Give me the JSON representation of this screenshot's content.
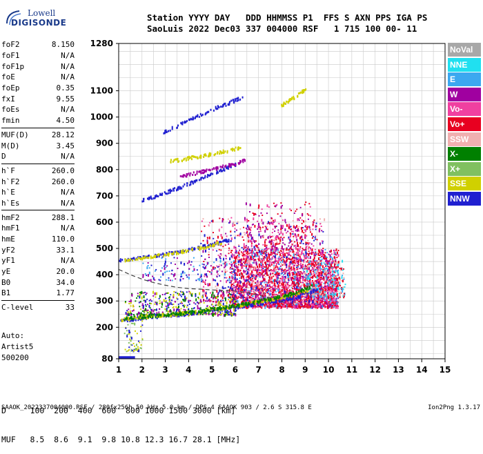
{
  "logo": {
    "line1": "Lowell",
    "line2": "DIGISONDE"
  },
  "header": {
    "line1": "Station YYYY DAY   DDD HHMMSS P1  FFS S AXN PPS IGA PS",
    "line2": "SaoLuis 2022 Dec03 337 004000 RSF   1 715 100 00- 11"
  },
  "params": {
    "group1": [
      {
        "label": "foF2",
        "value": "8.150"
      },
      {
        "label": "foF1",
        "value": "N/A"
      },
      {
        "label": "foF1p",
        "value": "N/A"
      },
      {
        "label": "foE",
        "value": "N/A"
      },
      {
        "label": "foEp",
        "value": "0.35"
      },
      {
        "label": "fxI",
        "value": "9.55"
      },
      {
        "label": "foEs",
        "value": "N/A"
      },
      {
        "label": "fmin",
        "value": "4.50"
      }
    ],
    "group2": [
      {
        "label": "MUF(D)",
        "value": "28.12"
      },
      {
        "label": "M(D)",
        "value": "3.45"
      },
      {
        "label": "D",
        "value": "N/A"
      }
    ],
    "group3": [
      {
        "label": "h`F",
        "value": "260.0"
      },
      {
        "label": "h`F2",
        "value": "260.0"
      },
      {
        "label": "h`E",
        "value": "N/A"
      },
      {
        "label": "h`Es",
        "value": "N/A"
      }
    ],
    "group4": [
      {
        "label": "hmF2",
        "value": "288.1"
      },
      {
        "label": "hmF1",
        "value": "N/A"
      },
      {
        "label": "hmE",
        "value": "110.0"
      },
      {
        "label": "yF2",
        "value": "33.1"
      },
      {
        "label": "yF1",
        "value": "N/A"
      },
      {
        "label": "yE",
        "value": "20.0"
      },
      {
        "label": "B0",
        "value": "34.0"
      },
      {
        "label": "B1",
        "value": "1.77"
      }
    ],
    "group5": [
      {
        "label": "C-level",
        "value": "33"
      }
    ]
  },
  "auto": {
    "line1": "Auto:",
    "line2": "Artist5",
    "line3": "500200"
  },
  "legend": [
    {
      "label": "NoVal",
      "color": "#a8a8a8"
    },
    {
      "label": "NNE",
      "color": "#20e0f0"
    },
    {
      "label": "E",
      "color": "#3ca8f0"
    },
    {
      "label": "W",
      "color": "#a000a0"
    },
    {
      "label": "Vo-",
      "color": "#f040a0"
    },
    {
      "label": "Vo+",
      "color": "#e80020"
    },
    {
      "label": "SSW",
      "color": "#f0b0b0"
    },
    {
      "label": "X-",
      "color": "#008000"
    },
    {
      "label": "X+",
      "color": "#80c060"
    },
    {
      "label": "SSE",
      "color": "#d0d000"
    },
    {
      "label": "NNW",
      "color": "#2020d0"
    }
  ],
  "bottom": {
    "line1": "D     100  200  400  600  800 1000 1500 3000 [km]",
    "line2": "MUF   8.5  8.6  9.1  9.8 10.8 12.3 16.7 28.1 [MHz]"
  },
  "footer": "SAAOK_2022337004000.RSF / 280fx256h 50 kHz 5.0 km / DPS-4 SAAOK 903 / 2.6 S 315.8 E",
  "version": "Ion2Png 1.3.17",
  "chart_data": {
    "type": "scatter",
    "xlim": [
      1,
      15
    ],
    "ylim": [
      80,
      1280
    ],
    "x_ticks": [
      1,
      2,
      3,
      4,
      5,
      6,
      7,
      8,
      9,
      10,
      11,
      12,
      13,
      14,
      15
    ],
    "y_ticks": [
      80,
      200,
      300,
      400,
      500,
      600,
      700,
      800,
      900,
      1000,
      1100,
      1280
    ],
    "grid": true,
    "profile_curve": [
      [
        1,
        420
      ],
      [
        1.5,
        400
      ],
      [
        2,
        383
      ],
      [
        2.5,
        370
      ],
      [
        3,
        360
      ],
      [
        3.5,
        352
      ],
      [
        4,
        347
      ],
      [
        4.5,
        345
      ],
      [
        5,
        342
      ],
      [
        5.5,
        340
      ],
      [
        6,
        338
      ],
      [
        6.5,
        332
      ],
      [
        7,
        322
      ],
      [
        7.5,
        312
      ],
      [
        8,
        298
      ],
      [
        8.2,
        288
      ]
    ],
    "traces": [
      {
        "points": [
          [
            1.0,
            228
          ],
          [
            1.5,
            234
          ],
          [
            2,
            240
          ],
          [
            2.5,
            244
          ],
          [
            3,
            247
          ],
          [
            3.5,
            251
          ],
          [
            4,
            255
          ],
          [
            4.5,
            262
          ],
          [
            5,
            268
          ],
          [
            5.5,
            274
          ],
          [
            6,
            280
          ],
          [
            6.5,
            287
          ],
          [
            7,
            293
          ],
          [
            7.5,
            300
          ],
          [
            8,
            307
          ],
          [
            8.5,
            316
          ],
          [
            9,
            330
          ],
          [
            9.5,
            348
          ]
        ],
        "color": "#2020d0"
      },
      {
        "points": [
          [
            1.1,
            232
          ],
          [
            1.6,
            238
          ],
          [
            2.1,
            243
          ],
          [
            2.6,
            247
          ],
          [
            3.1,
            250
          ],
          [
            3.6,
            254
          ],
          [
            4.1,
            259
          ],
          [
            4.6,
            266
          ],
          [
            5.1,
            272
          ],
          [
            5.6,
            279
          ],
          [
            6.1,
            286
          ],
          [
            6.6,
            294
          ],
          [
            7.1,
            302
          ],
          [
            7.6,
            310
          ],
          [
            8.1,
            320
          ],
          [
            8.6,
            332
          ],
          [
            9.1,
            346
          ]
        ],
        "color": "#d0d000"
      },
      {
        "points": [
          [
            1.2,
            236
          ],
          [
            1.8,
            242
          ],
          [
            2.3,
            246
          ],
          [
            2.8,
            249
          ],
          [
            3.3,
            252
          ],
          [
            3.8,
            257
          ],
          [
            4.3,
            262
          ],
          [
            4.8,
            269
          ],
          [
            5.3,
            276
          ],
          [
            5.8,
            283
          ],
          [
            6.3,
            291
          ],
          [
            6.8,
            299
          ],
          [
            7.3,
            308
          ],
          [
            7.8,
            318
          ],
          [
            8.3,
            329
          ],
          [
            8.8,
            342
          ],
          [
            9.3,
            360
          ]
        ],
        "color": "#008000"
      },
      {
        "points": [
          [
            1.0,
            458
          ],
          [
            1.5,
            462
          ],
          [
            2,
            468
          ],
          [
            2.5,
            475
          ],
          [
            3,
            482
          ],
          [
            3.5,
            490
          ],
          [
            4,
            498
          ],
          [
            4.5,
            508
          ],
          [
            5,
            518
          ],
          [
            5.5,
            530
          ],
          [
            6,
            542
          ]
        ],
        "color": "#2020d0"
      },
      {
        "points": [
          [
            1.2,
            456
          ],
          [
            1.8,
            464
          ],
          [
            2.4,
            472
          ],
          [
            3,
            480
          ],
          [
            3.6,
            490
          ],
          [
            4.2,
            500
          ],
          [
            4.8,
            512
          ],
          [
            5.4,
            526
          ]
        ],
        "color": "#d0d000"
      },
      {
        "points": [
          [
            1.9,
            682
          ],
          [
            2.5,
            700
          ],
          [
            3,
            716
          ],
          [
            3.5,
            732
          ],
          [
            4,
            750
          ],
          [
            4.5,
            768
          ],
          [
            5,
            786
          ],
          [
            5.5,
            805
          ],
          [
            6,
            822
          ]
        ],
        "color": "#2020d0"
      },
      {
        "points": [
          [
            3.2,
            835
          ],
          [
            3.7,
            842
          ],
          [
            4.2,
            850
          ],
          [
            4.7,
            858
          ],
          [
            5.2,
            866
          ],
          [
            5.7,
            876
          ],
          [
            6.2,
            886
          ]
        ],
        "color": "#d0d000"
      },
      {
        "points": [
          [
            3.6,
            778
          ],
          [
            4.1,
            786
          ],
          [
            4.6,
            796
          ],
          [
            5.1,
            806
          ],
          [
            5.6,
            818
          ],
          [
            6.1,
            830
          ],
          [
            6.4,
            840
          ]
        ],
        "color": "#a000a0"
      },
      {
        "points": [
          [
            2.9,
            945
          ],
          [
            3.5,
            970
          ],
          [
            4.1,
            995
          ],
          [
            4.7,
            1020
          ],
          [
            5.3,
            1043
          ],
          [
            5.8,
            1060
          ],
          [
            6.3,
            1080
          ]
        ],
        "color": "#2020d0"
      },
      {
        "points": [
          [
            7.9,
            1045
          ],
          [
            8.3,
            1065
          ],
          [
            8.7,
            1090
          ],
          [
            9,
            1110
          ]
        ],
        "color": "#d0d000"
      }
    ],
    "clouds": [
      {
        "x": [
          5.8,
          10.4
        ],
        "y": [
          280,
          500
        ],
        "colors": [
          "#e80020",
          "#f040a0",
          "#a000a0",
          "#e80020",
          "#3ca8f0",
          "#f040a0",
          "#e80020"
        ],
        "n": 2600
      },
      {
        "x": [
          4.5,
          9.8
        ],
        "y": [
          300,
          620
        ],
        "colors": [
          "#a000a0",
          "#f040a0",
          "#2020d0",
          "#e80020",
          "#f0b0b0"
        ],
        "n": 900
      },
      {
        "x": [
          6.3,
          9.2
        ],
        "y": [
          500,
          680
        ],
        "colors": [
          "#e80020",
          "#a000a0",
          "#f040a0"
        ],
        "n": 250
      },
      {
        "x": [
          1.2,
          6.0
        ],
        "y": [
          250,
          340
        ],
        "colors": [
          "#2020d0",
          "#a000a0",
          "#008000",
          "#d0d000"
        ],
        "n": 500
      },
      {
        "x": [
          9,
          10.7
        ],
        "y": [
          320,
          460
        ],
        "colors": [
          "#3ca8f0",
          "#20e0f0",
          "#f0b0b0",
          "#e80020"
        ],
        "n": 220
      },
      {
        "x": [
          2,
          6
        ],
        "y": [
          380,
          470
        ],
        "colors": [
          "#2020d0",
          "#a000a0",
          "#3ca8f0"
        ],
        "n": 150
      },
      {
        "x": [
          1.2,
          2.0
        ],
        "y": [
          110,
          230
        ],
        "colors": [
          "#2020d0",
          "#d0d000",
          "#80c060"
        ],
        "n": 60
      }
    ],
    "base_segment": {
      "x": [
        1,
        1.7
      ],
      "y": 82,
      "color": "#2020d0"
    }
  }
}
